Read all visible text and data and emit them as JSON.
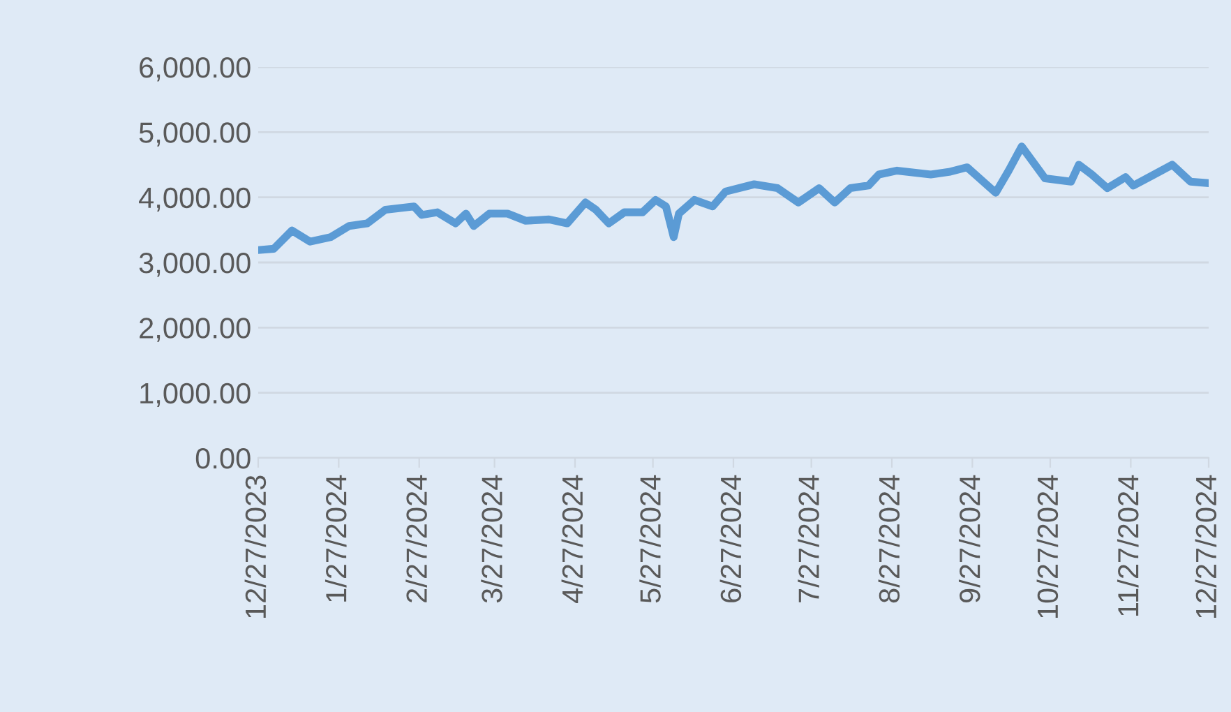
{
  "chart_data": {
    "type": "line",
    "x": [
      "2023-12-27",
      "2024-01-02",
      "2024-01-09",
      "2024-01-16",
      "2024-01-24",
      "2024-01-31",
      "2024-02-07",
      "2024-02-14",
      "2024-02-25",
      "2024-02-28",
      "2024-03-05",
      "2024-03-12",
      "2024-03-16",
      "2024-03-19",
      "2024-03-25",
      "2024-04-01",
      "2024-04-08",
      "2024-04-17",
      "2024-04-24",
      "2024-05-01",
      "2024-05-05",
      "2024-05-10",
      "2024-05-16",
      "2024-05-23",
      "2024-05-28",
      "2024-06-01",
      "2024-06-04",
      "2024-06-06",
      "2024-06-12",
      "2024-06-19",
      "2024-06-24",
      "2024-07-05",
      "2024-07-14",
      "2024-07-22",
      "2024-07-30",
      "2024-08-05",
      "2024-08-11",
      "2024-08-18",
      "2024-08-22",
      "2024-08-29",
      "2024-09-11",
      "2024-09-18",
      "2024-09-25",
      "2024-10-06",
      "2024-10-11",
      "2024-10-16",
      "2024-10-25",
      "2024-11-04",
      "2024-11-07",
      "2024-11-12",
      "2024-11-18",
      "2024-11-25",
      "2024-11-28",
      "2024-12-06",
      "2024-12-13",
      "2024-12-20",
      "2024-12-26"
    ],
    "series": [
      {
        "color": "#5b9bd5",
        "values": [
          3190,
          3210,
          3490,
          3320,
          3390,
          3560,
          3600,
          3810,
          3860,
          3730,
          3770,
          3600,
          3750,
          3560,
          3750,
          3750,
          3640,
          3660,
          3600,
          3920,
          3810,
          3600,
          3770,
          3770,
          3960,
          3860,
          3390,
          3750,
          3960,
          3860,
          4090,
          4200,
          4140,
          3920,
          4140,
          3920,
          4140,
          4180,
          4350,
          4410,
          4350,
          4390,
          4460,
          4070,
          4410,
          4780,
          4290,
          4240,
          4500,
          4350,
          4140,
          4310,
          4180,
          4350,
          4500,
          4240,
          4220
        ]
      }
    ],
    "xlim": [
      "2023-12-27",
      "2024-12-27"
    ],
    "xticks": [
      {
        "value": "2023-12-27",
        "label": "12/27/2023"
      },
      {
        "value": "2024-01-27",
        "label": "1/27/2024"
      },
      {
        "value": "2024-02-27",
        "label": "2/27/2024"
      },
      {
        "value": "2024-03-27",
        "label": "3/27/2024"
      },
      {
        "value": "2024-04-27",
        "label": "4/27/2024"
      },
      {
        "value": "2024-05-27",
        "label": "5/27/2024"
      },
      {
        "value": "2024-06-27",
        "label": "6/27/2024"
      },
      {
        "value": "2024-07-27",
        "label": "7/27/2024"
      },
      {
        "value": "2024-08-27",
        "label": "8/27/2024"
      },
      {
        "value": "2024-09-27",
        "label": "9/27/2024"
      },
      {
        "value": "2024-10-27",
        "label": "10/27/2024"
      },
      {
        "value": "2024-11-27",
        "label": "11/27/2024"
      },
      {
        "value": "2024-12-27",
        "label": "12/27/2024"
      }
    ],
    "ylim": [
      0,
      6000
    ],
    "yticks": [
      {
        "value": 0,
        "label": "0.00"
      },
      {
        "value": 1000,
        "label": "1,000.00"
      },
      {
        "value": 2000,
        "label": "2,000.00"
      },
      {
        "value": 3000,
        "label": "3,000.00"
      },
      {
        "value": 4000,
        "label": "4,000.00"
      },
      {
        "value": 5000,
        "label": "5,000.00"
      },
      {
        "value": 6000,
        "label": "6,000.00"
      }
    ],
    "grid": "y",
    "legend": false,
    "marker": "none",
    "line_style": "solid"
  }
}
